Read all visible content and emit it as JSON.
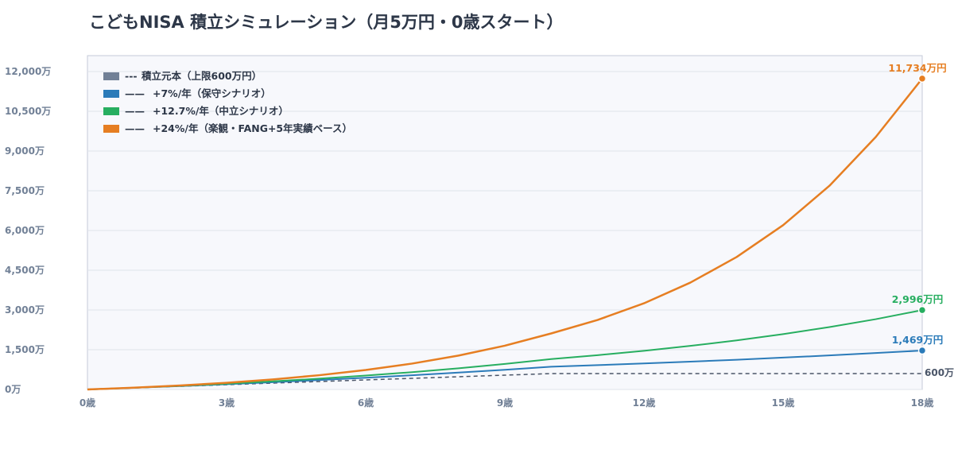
{
  "title": "こどもNISA 積立シミュレーション（月5万円・0歳スタート）",
  "chart_data": {
    "type": "line",
    "x": [
      0,
      1,
      2,
      3,
      4,
      5,
      6,
      7,
      8,
      9,
      10,
      11,
      12,
      13,
      14,
      15,
      16,
      17,
      18
    ],
    "x_ticks": [
      {
        "value": 0,
        "label": "0歳"
      },
      {
        "value": 3,
        "label": "3歳"
      },
      {
        "value": 6,
        "label": "6歳"
      },
      {
        "value": 9,
        "label": "9歳"
      },
      {
        "value": 12,
        "label": "12歳"
      },
      {
        "value": 15,
        "label": "15歳"
      },
      {
        "value": 18,
        "label": "18歳"
      }
    ],
    "y_ticks": [
      {
        "value": 0,
        "label": "0万"
      },
      {
        "value": 1500,
        "label": "1,500万"
      },
      {
        "value": 3000,
        "label": "3,000万"
      },
      {
        "value": 4500,
        "label": "4,500万"
      },
      {
        "value": 6000,
        "label": "6,000万"
      },
      {
        "value": 7500,
        "label": "7,500万"
      },
      {
        "value": 9000,
        "label": "9,000万"
      },
      {
        "value": 10500,
        "label": "10,500万"
      },
      {
        "value": 12000,
        "label": "12,000万"
      }
    ],
    "ylim": [
      0,
      12600
    ],
    "xlim": [
      0,
      18
    ],
    "grid": true,
    "legend_position": "top-left",
    "series": [
      {
        "name": "積立元本（上限600万円）",
        "legend_prefix": "---",
        "color": "#718096",
        "line_color": "#4a5568",
        "style": "dashed",
        "values": [
          0,
          60,
          120,
          180,
          240,
          300,
          360,
          420,
          480,
          540,
          600,
          600,
          600,
          600,
          600,
          600,
          600,
          600,
          600
        ],
        "end_label": "600万",
        "end_label_color": "#4a5568"
      },
      {
        "name": "+7%/年（保守シナリオ）",
        "legend_prefix": "——",
        "color": "#2b7bb9",
        "style": "solid",
        "values": [
          0,
          62,
          128,
          199,
          275,
          356,
          443,
          536,
          636,
          743,
          857,
          917,
          981,
          1050,
          1123,
          1202,
          1286,
          1376,
          1469
        ],
        "end_label": "1,469万円",
        "end_label_color": "#2b7bb9"
      },
      {
        "name": "+12.7%/年（中立シナリオ）",
        "legend_prefix": "——",
        "color": "#27ae60",
        "style": "solid",
        "values": [
          0,
          64,
          136,
          216,
          307,
          409,
          525,
          654,
          800,
          964,
          1149,
          1295,
          1459,
          1645,
          1854,
          2089,
          2354,
          2653,
          2996
        ],
        "end_label": "2,996万円",
        "end_label_color": "#27ae60"
      },
      {
        "name": "+24%/年（楽観・FANG+5年実績ベース）",
        "legend_prefix": "——",
        "color": "#e67e22",
        "style": "solid",
        "values": [
          0,
          67,
          150,
          252,
          380,
          538,
          734,
          977,
          1278,
          1652,
          2115,
          2623,
          3252,
          4033,
          5000,
          6200,
          7688,
          9533,
          11734
        ],
        "end_label": "11,734万円",
        "end_label_color": "#e67e22"
      }
    ]
  },
  "colors": {
    "plot_bg": "#f7f8fc",
    "grid": "#dfe3ea",
    "axis_text": "#718096",
    "legend_text": "#2d3748",
    "frame": "#c5cad8"
  }
}
